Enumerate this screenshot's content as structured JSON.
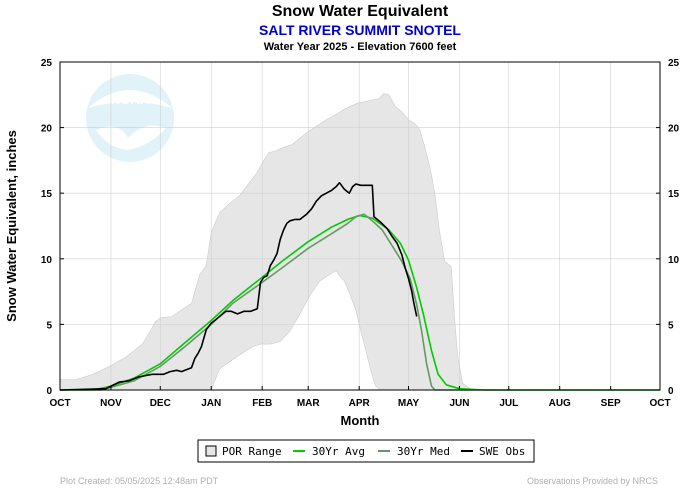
{
  "chart_data": {
    "type": "line",
    "title": "Snow Water Equivalent",
    "subtitle": "SALT RIVER SUMMIT SNOTEL",
    "subtitle2": "Water Year 2025 -  Elevation 7600 feet",
    "xlabel": "Month",
    "ylabel": "Snow Water Equivalent, inches",
    "ylim": [
      0,
      25
    ],
    "yticks": [
      0,
      5,
      10,
      15,
      20,
      25
    ],
    "xlim": [
      0,
      365
    ],
    "x_ticks": [
      {
        "x": 0,
        "label": "OCT"
      },
      {
        "x": 31,
        "label": "NOV"
      },
      {
        "x": 61,
        "label": "DEC"
      },
      {
        "x": 92,
        "label": "JAN"
      },
      {
        "x": 123,
        "label": "FEB"
      },
      {
        "x": 151,
        "label": "MAR"
      },
      {
        "x": 182,
        "label": "APR"
      },
      {
        "x": 212,
        "label": "MAY"
      },
      {
        "x": 243,
        "label": "JUN"
      },
      {
        "x": 273,
        "label": "JUL"
      },
      {
        "x": 304,
        "label": "AUG"
      },
      {
        "x": 335,
        "label": "SEP"
      },
      {
        "x": 365,
        "label": "OCT"
      }
    ],
    "grid": true,
    "legend_position": "bottom",
    "series": [
      {
        "name": "POR Range",
        "kind": "band",
        "color": "#e6e6e6",
        "upper": [
          [
            0,
            0.8
          ],
          [
            10,
            0.8
          ],
          [
            20,
            1.2
          ],
          [
            30,
            1.8
          ],
          [
            40,
            2.5
          ],
          [
            50,
            3.5
          ],
          [
            55,
            4.5
          ],
          [
            58,
            5.2
          ],
          [
            61,
            5.5
          ],
          [
            68,
            5.6
          ],
          [
            75,
            6.2
          ],
          [
            80,
            6.6
          ],
          [
            85,
            8.8
          ],
          [
            89,
            9.5
          ],
          [
            92,
            12.0
          ],
          [
            97,
            13.5
          ],
          [
            103,
            14.2
          ],
          [
            109,
            14.8
          ],
          [
            114,
            15.6
          ],
          [
            120,
            16.6
          ],
          [
            124,
            17.5
          ],
          [
            127,
            18.1
          ],
          [
            131,
            18.2
          ],
          [
            136,
            18.5
          ],
          [
            141,
            18.7
          ],
          [
            147,
            19.3
          ],
          [
            151,
            19.7
          ],
          [
            157,
            20.2
          ],
          [
            162,
            20.6
          ],
          [
            168,
            21.0
          ],
          [
            173,
            21.4
          ],
          [
            178,
            21.7
          ],
          [
            182,
            21.9
          ],
          [
            186,
            22.0
          ],
          [
            190,
            22.1
          ],
          [
            194,
            22.2
          ],
          [
            197,
            22.6
          ],
          [
            200,
            22.5
          ],
          [
            204,
            21.6
          ],
          [
            208,
            21.2
          ],
          [
            212,
            20.6
          ],
          [
            216,
            20.3
          ],
          [
            219,
            19.8
          ],
          [
            222,
            18.5
          ],
          [
            225,
            17.0
          ],
          [
            228,
            15.0
          ],
          [
            231,
            12.0
          ],
          [
            234,
            9.8
          ],
          [
            236,
            9.6
          ],
          [
            238,
            9.4
          ],
          [
            240,
            5.5
          ],
          [
            242,
            2.5
          ],
          [
            245,
            0.5
          ],
          [
            250,
            0.05
          ],
          [
            260,
            0.0
          ],
          [
            365,
            0.0
          ]
        ],
        "lower": [
          [
            0,
            0.0
          ],
          [
            92,
            0.0
          ],
          [
            97,
            1.6
          ],
          [
            105,
            2.3
          ],
          [
            112,
            2.9
          ],
          [
            117,
            3.3
          ],
          [
            122,
            3.5
          ],
          [
            128,
            3.5
          ],
          [
            134,
            3.7
          ],
          [
            140,
            4.5
          ],
          [
            146,
            5.8
          ],
          [
            152,
            7.2
          ],
          [
            158,
            8.3
          ],
          [
            164,
            8.8
          ],
          [
            168,
            9.1
          ],
          [
            170,
            8.7
          ],
          [
            173,
            8.3
          ],
          [
            176,
            7.4
          ],
          [
            180,
            6.1
          ],
          [
            183,
            4.5
          ],
          [
            186,
            3.0
          ],
          [
            189,
            1.5
          ],
          [
            192,
            0.3
          ],
          [
            195,
            0.0
          ],
          [
            365,
            0.0
          ]
        ]
      },
      {
        "name": "30Yr Avg",
        "kind": "line",
        "color": "#00cc00",
        "points": [
          [
            0,
            0.0
          ],
          [
            20,
            0.0
          ],
          [
            31,
            0.3
          ],
          [
            45,
            0.9
          ],
          [
            61,
            2.0
          ],
          [
            75,
            3.5
          ],
          [
            92,
            5.3
          ],
          [
            105,
            6.8
          ],
          [
            123,
            8.6
          ],
          [
            135,
            9.8
          ],
          [
            151,
            11.3
          ],
          [
            165,
            12.4
          ],
          [
            175,
            13.0
          ],
          [
            182,
            13.3
          ],
          [
            190,
            13.1
          ],
          [
            200,
            12.2
          ],
          [
            207,
            11.2
          ],
          [
            212,
            9.9
          ],
          [
            217,
            7.8
          ],
          [
            221,
            5.8
          ],
          [
            226,
            3.0
          ],
          [
            230,
            1.2
          ],
          [
            235,
            0.4
          ],
          [
            243,
            0.1
          ],
          [
            250,
            0.05
          ],
          [
            258,
            0.0
          ],
          [
            365,
            0.0
          ]
        ]
      },
      {
        "name": "30Yr Med",
        "kind": "line",
        "color": "#669966",
        "points": [
          [
            0,
            0.0
          ],
          [
            25,
            0.0
          ],
          [
            31,
            0.2
          ],
          [
            45,
            0.7
          ],
          [
            61,
            1.8
          ],
          [
            75,
            3.2
          ],
          [
            92,
            5.0
          ],
          [
            105,
            6.6
          ],
          [
            123,
            8.2
          ],
          [
            135,
            9.3
          ],
          [
            151,
            10.8
          ],
          [
            165,
            11.9
          ],
          [
            175,
            12.7
          ],
          [
            180,
            13.2
          ],
          [
            185,
            13.4
          ],
          [
            190,
            12.9
          ],
          [
            196,
            12.2
          ],
          [
            202,
            11.0
          ],
          [
            208,
            9.8
          ],
          [
            213,
            8.5
          ],
          [
            217,
            6.5
          ],
          [
            220,
            4.5
          ],
          [
            223,
            2.0
          ],
          [
            226,
            0.3
          ],
          [
            228,
            0.0
          ],
          [
            365,
            0.0
          ]
        ]
      },
      {
        "name": "SWE Obs",
        "kind": "line",
        "color": "#000000",
        "points": [
          [
            0,
            0.0
          ],
          [
            28,
            0.1
          ],
          [
            31,
            0.3
          ],
          [
            36,
            0.6
          ],
          [
            42,
            0.7
          ],
          [
            48,
            1.0
          ],
          [
            52,
            1.1
          ],
          [
            56,
            1.2
          ],
          [
            60,
            1.2
          ],
          [
            63,
            1.2
          ],
          [
            67,
            1.4
          ],
          [
            71,
            1.5
          ],
          [
            74,
            1.4
          ],
          [
            76,
            1.5
          ],
          [
            78,
            1.6
          ],
          [
            80,
            1.7
          ],
          [
            82,
            2.4
          ],
          [
            84,
            2.8
          ],
          [
            86,
            3.3
          ],
          [
            89,
            4.6
          ],
          [
            92,
            5.1
          ],
          [
            95,
            5.4
          ],
          [
            98,
            5.7
          ],
          [
            101,
            6.0
          ],
          [
            104,
            6.0
          ],
          [
            108,
            5.8
          ],
          [
            112,
            6.0
          ],
          [
            116,
            6.0
          ],
          [
            118,
            6.1
          ],
          [
            120,
            6.2
          ],
          [
            122,
            8.2
          ],
          [
            124,
            8.6
          ],
          [
            126,
            8.7
          ],
          [
            128,
            9.5
          ],
          [
            130,
            9.9
          ],
          [
            132,
            10.4
          ],
          [
            134,
            11.5
          ],
          [
            136,
            12.2
          ],
          [
            138,
            12.7
          ],
          [
            140,
            12.9
          ],
          [
            143,
            13.0
          ],
          [
            146,
            13.0
          ],
          [
            148,
            13.2
          ],
          [
            150,
            13.4
          ],
          [
            153,
            13.8
          ],
          [
            156,
            14.4
          ],
          [
            159,
            14.8
          ],
          [
            162,
            15.0
          ],
          [
            165,
            15.2
          ],
          [
            168,
            15.5
          ],
          [
            170,
            15.8
          ],
          [
            173,
            15.3
          ],
          [
            176,
            15.0
          ],
          [
            178,
            15.5
          ],
          [
            180,
            15.7
          ],
          [
            183,
            15.6
          ],
          [
            187,
            15.6
          ],
          [
            190,
            15.6
          ],
          [
            191,
            13.2
          ],
          [
            195,
            12.8
          ],
          [
            199,
            12.3
          ],
          [
            202,
            11.7
          ],
          [
            205,
            11.2
          ],
          [
            208,
            10.3
          ],
          [
            210,
            9.3
          ],
          [
            212,
            8.5
          ],
          [
            214,
            7.5
          ],
          [
            215,
            6.8
          ],
          [
            217,
            5.6
          ]
        ]
      }
    ]
  },
  "branding": {
    "logo_text": "NOAA"
  },
  "legend": {
    "items": [
      {
        "label": "POR Range",
        "symbol": "box",
        "color": "#e6e6e6"
      },
      {
        "label": "30Yr Avg",
        "symbol": "line",
        "color": "#00cc00"
      },
      {
        "label": "30Yr Med",
        "symbol": "line",
        "color": "#669966"
      },
      {
        "label": "SWE Obs",
        "symbol": "line",
        "color": "#000000"
      }
    ]
  },
  "footer": {
    "left": "Plot Created:  05/05/2025 12:48am PDT",
    "right": "Observations Provided by NRCS"
  }
}
